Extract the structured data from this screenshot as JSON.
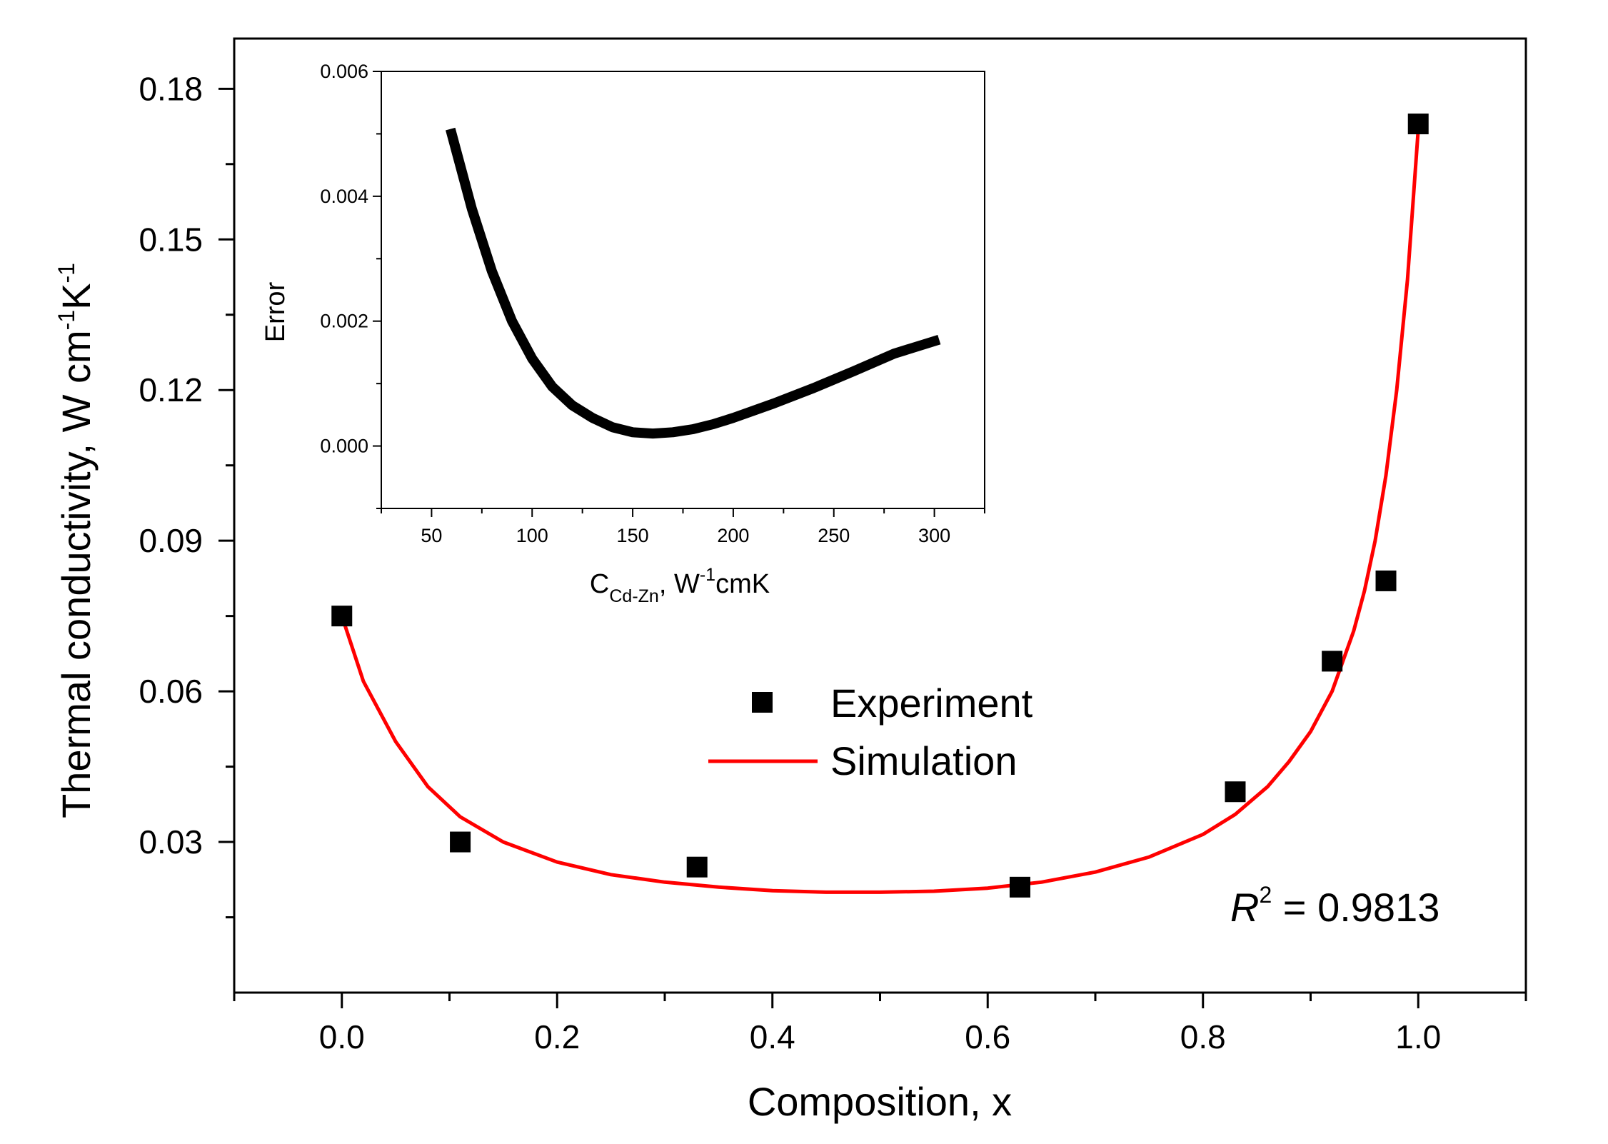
{
  "chart_data": [
    {
      "type": "scatter",
      "title": "",
      "xlabel": "Composition, x",
      "ylabel": "Thermal conductivity, W cm",
      "ylabel_unit_parts": {
        "cm_exp": "-1",
        "K": "K",
        "K_exp": "-1"
      },
      "xlim": [
        -0.1,
        1.1
      ],
      "ylim": [
        0.0,
        0.19
      ],
      "xticks": [
        0.0,
        0.2,
        0.4,
        0.6,
        0.8,
        1.0
      ],
      "xtick_labels": [
        "0.0",
        "0.2",
        "0.4",
        "0.6",
        "0.8",
        "1.0"
      ],
      "yticks": [
        0.03,
        0.06,
        0.09,
        0.12,
        0.15,
        0.18
      ],
      "ytick_labels": [
        "0.03",
        "0.06",
        "0.09",
        "0.12",
        "0.15",
        "0.18"
      ],
      "legend_position": "center",
      "series": [
        {
          "name": "Experiment",
          "kind": "markers",
          "marker": "square",
          "color": "#000000",
          "x": [
            0.0,
            0.11,
            0.33,
            0.63,
            0.83,
            0.92,
            0.97,
            1.0
          ],
          "y": [
            0.075,
            0.03,
            0.025,
            0.021,
            0.04,
            0.066,
            0.082,
            0.173
          ]
        },
        {
          "name": "Simulation",
          "kind": "line",
          "color": "#ff0000",
          "x": [
            0.0,
            0.02,
            0.05,
            0.08,
            0.11,
            0.15,
            0.2,
            0.25,
            0.3,
            0.35,
            0.4,
            0.45,
            0.5,
            0.55,
            0.6,
            0.65,
            0.7,
            0.75,
            0.8,
            0.83,
            0.86,
            0.88,
            0.9,
            0.92,
            0.94,
            0.95,
            0.96,
            0.97,
            0.98,
            0.99,
            1.0
          ],
          "y": [
            0.075,
            0.062,
            0.05,
            0.041,
            0.035,
            0.03,
            0.026,
            0.0235,
            0.022,
            0.021,
            0.0203,
            0.02,
            0.02,
            0.0202,
            0.0208,
            0.022,
            0.024,
            0.027,
            0.0315,
            0.0355,
            0.041,
            0.046,
            0.052,
            0.06,
            0.072,
            0.08,
            0.09,
            0.103,
            0.12,
            0.142,
            0.172
          ]
        }
      ],
      "annotations": [
        {
          "text": "R",
          "sup": "2",
          "suffix": " = 0.9813"
        }
      ]
    },
    {
      "type": "line",
      "title": "",
      "xlabel": "C",
      "xlabel_subscript": "Cd-Zn",
      "xlabel_rest": ", W",
      "xlabel_sup": "-1",
      "xlabel_end": "cmK",
      "ylabel": "Error",
      "xlim": [
        25,
        325
      ],
      "ylim": [
        -0.001,
        0.006
      ],
      "xticks": [
        50,
        100,
        150,
        200,
        250,
        300
      ],
      "xtick_labels": [
        "50",
        "100",
        "150",
        "200",
        "250",
        "300"
      ],
      "yticks": [
        0.0,
        0.002,
        0.004,
        0.006
      ],
      "ytick_labels": [
        "0.000",
        "0.002",
        "0.004",
        "0.006"
      ],
      "series": [
        {
          "name": "Error",
          "color": "#000000",
          "x": [
            60,
            70,
            80,
            90,
            100,
            110,
            120,
            130,
            140,
            150,
            160,
            170,
            180,
            190,
            200,
            220,
            240,
            260,
            280,
            300
          ],
          "y": [
            0.005,
            0.0038,
            0.0028,
            0.002,
            0.0014,
            0.00095,
            0.00065,
            0.00045,
            0.0003,
            0.00022,
            0.0002,
            0.00022,
            0.00027,
            0.00035,
            0.00045,
            0.00068,
            0.00093,
            0.0012,
            0.00148,
            0.00168
          ]
        }
      ]
    }
  ]
}
